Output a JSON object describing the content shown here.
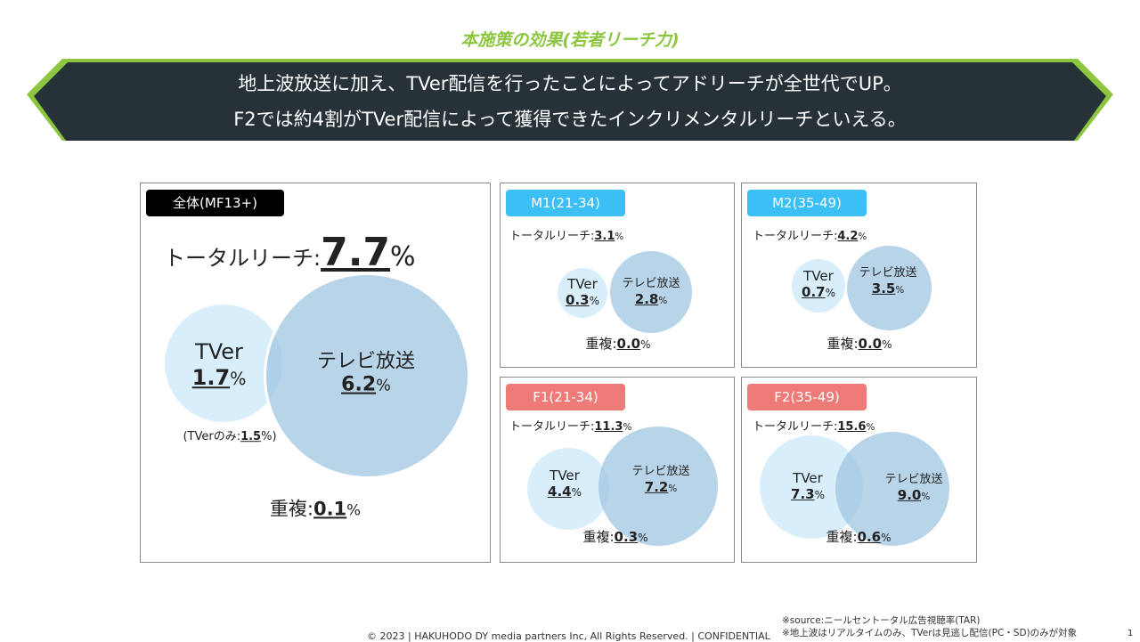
{
  "title": "本施策の効果(若者リーチ力)",
  "banner": {
    "line1": "地上波放送に加え、TVer配信を行ったことによってアドリーチが全世代でUP。",
    "line2": "F2では約4割がTVer配信によって獲得できたインクリメンタルリーチといえる。"
  },
  "colors": {
    "accent": "#8cc63f",
    "banner": "#263238",
    "m_badge": "#3bbff5",
    "f_badge": "#ee7b77"
  },
  "labels": {
    "total_reach": "トータルリーチ:",
    "tver": "TVer",
    "tv": "テレビ放送",
    "overlap": "重複:",
    "pct": "%",
    "tver_only_prefix": "(TVerのみ:",
    "tver_only_suffix": "%)"
  },
  "overall": {
    "badge": "全体(MF13+)",
    "total": "7.7",
    "tver": "1.7",
    "tv": "6.2",
    "overlap": "0.1",
    "tver_only": "1.5"
  },
  "m1": {
    "badge": "M1(21-34)",
    "total": "3.1",
    "tver": "0.3",
    "tv": "2.8",
    "overlap": "0.0"
  },
  "m2": {
    "badge": "M2(35-49)",
    "total": "4.2",
    "tver": "0.7",
    "tv": "3.5",
    "overlap": "0.0"
  },
  "f1": {
    "badge": "F1(21-34)",
    "total": "11.3",
    "tver": "4.4",
    "tv": "7.2",
    "overlap": "0.3"
  },
  "f2": {
    "badge": "F2(35-49)",
    "total": "15.6",
    "tver": "7.3",
    "tv": "9.0",
    "overlap": "0.6"
  },
  "footer": {
    "copyright": "© 2023 | HAKUHODO DY media partners Inc, All Rights Reserved. | CONFIDENTIAL",
    "note1": "※source:ニールセントータル広告視聴率(TAR)",
    "note2": "※地上波はリアルタイムのみ、TVerは見逃し配信(PC・SD)のみが対象",
    "page": "1"
  }
}
